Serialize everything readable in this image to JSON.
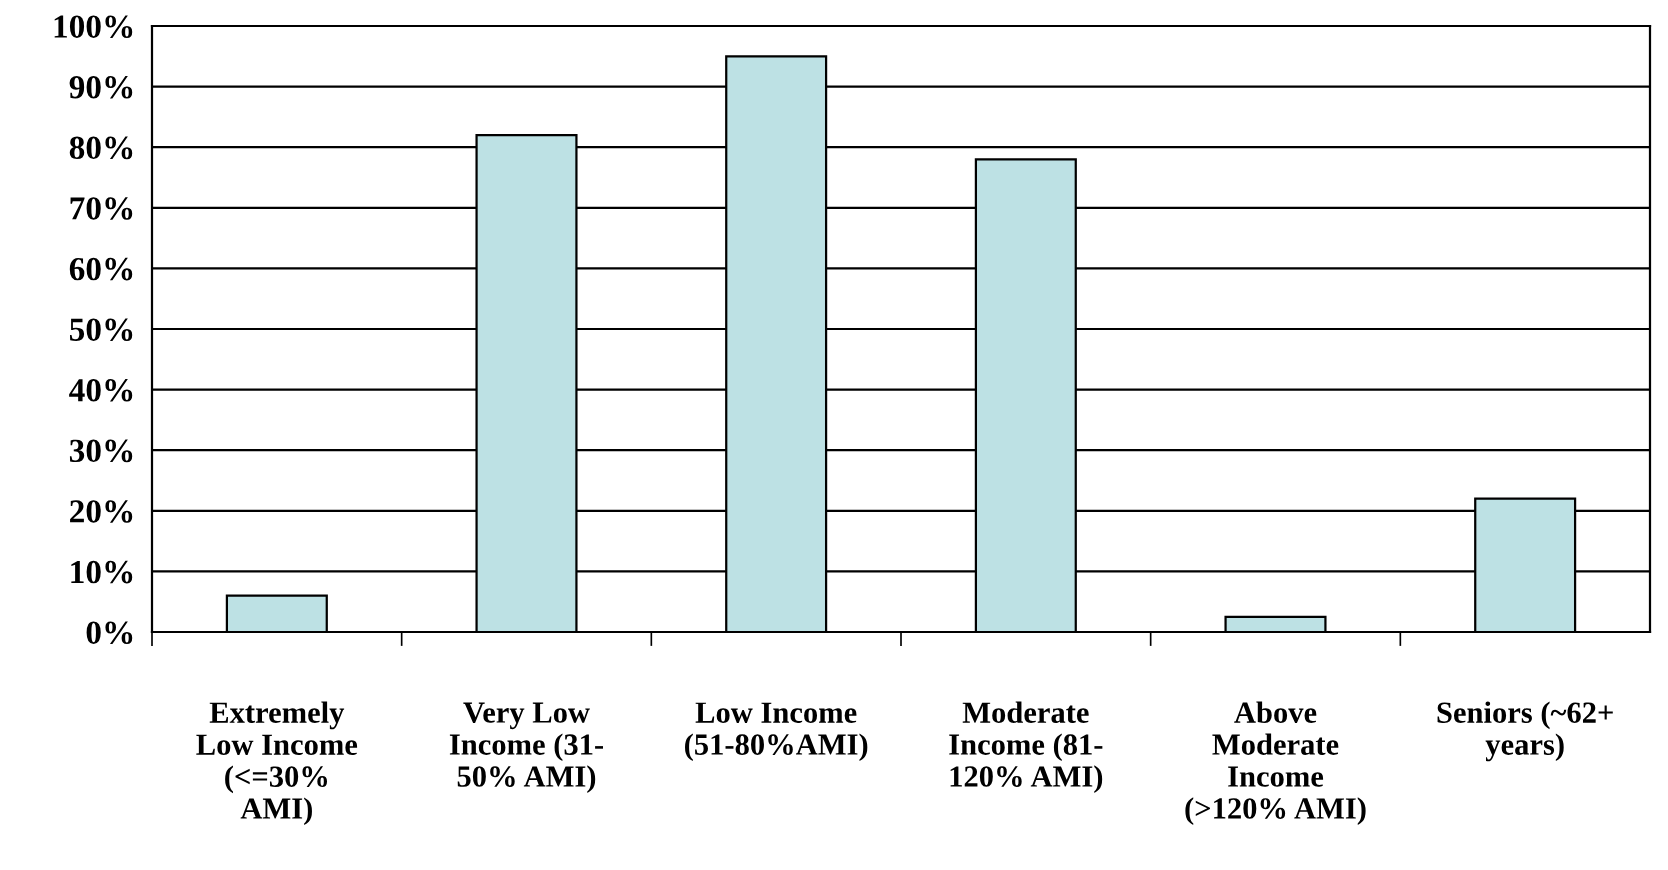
{
  "chart_data": {
    "type": "bar",
    "categories": [
      "Extremely\nLow Income\n(<=30%\nAMI)",
      "Very Low\nIncome (31-\n50% AMI)",
      "Low Income\n(51-80%AMI)",
      "Moderate\nIncome (81-\n120% AMI)",
      "Above\nModerate\nIncome\n(>120% AMI)",
      "Seniors (~62+\nyears)"
    ],
    "values": [
      6,
      82,
      95,
      78,
      2.5,
      22
    ],
    "color": "#bde1e4",
    "ylim": [
      0,
      100
    ],
    "yticks": [
      {
        "value": 0,
        "label": "0%"
      },
      {
        "value": 10,
        "label": "10%"
      },
      {
        "value": 20,
        "label": "20%"
      },
      {
        "value": 30,
        "label": "30%"
      },
      {
        "value": 40,
        "label": "40%"
      },
      {
        "value": 50,
        "label": "50%"
      },
      {
        "value": 60,
        "label": "60%"
      },
      {
        "value": 70,
        "label": "70%"
      },
      {
        "value": 80,
        "label": "80%"
      },
      {
        "value": 90,
        "label": "90%"
      },
      {
        "value": 100,
        "label": "100%"
      }
    ],
    "grid": "y"
  }
}
